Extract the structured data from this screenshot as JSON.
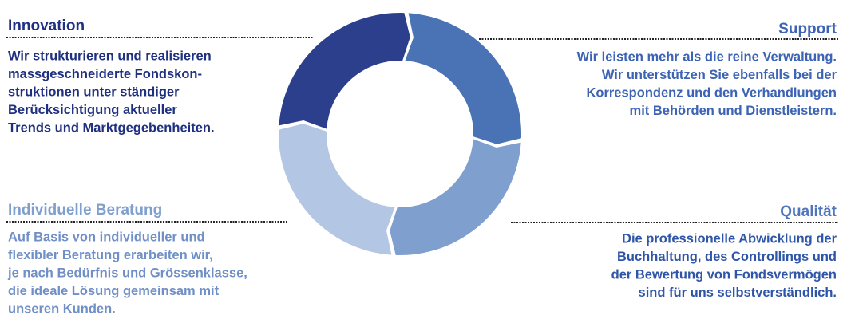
{
  "quadrants": [
    {
      "title": "Innovation",
      "lines": [
        "Wir strukturieren und realisieren",
        "massgeschneiderte Fondskon-",
        "struktionen unter ständiger",
        "Berücksichtigung aktueller",
        "Trends und Marktgegebenheiten."
      ]
    },
    {
      "title": "Support",
      "lines": [
        "Wir leisten mehr als die reine Verwaltung.",
        "Wir unterstützen Sie ebenfalls bei der",
        "Korrespondenz und den Verhandlungen",
        "mit Behörden und Dienstleistern."
      ]
    },
    {
      "title": "Individuelle Beratung",
      "lines": [
        "Auf Basis von individueller und",
        "flexibler Beratung erarbeiten wir,",
        "je nach Bedürfnis und Grössenklasse,",
        "die ideale Lösung gemeinsam mit",
        "unseren Kunden."
      ]
    },
    {
      "title": "Qualität",
      "lines": [
        "Die professionelle Abwicklung der",
        "Buchhaltung, des Controllings und",
        "der Bewertung von Fondsvermögen",
        "sind für uns selbstverständlich."
      ]
    }
  ]
}
